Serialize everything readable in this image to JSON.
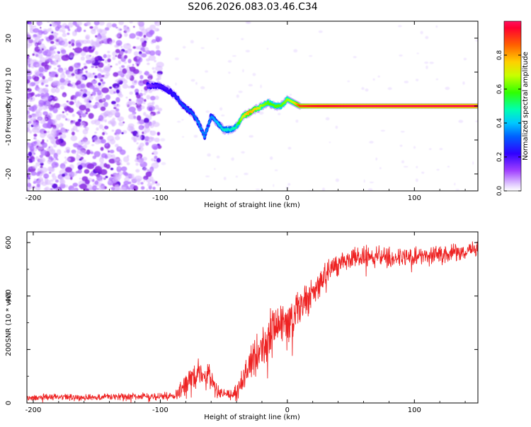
{
  "title": "S206.2026.083.03.46.C34",
  "colors": {
    "snr_line": "#ee2222",
    "axes": "#000000",
    "purple_scatter": "#8a2be2"
  },
  "chart_data": [
    {
      "type": "heatmap",
      "title": "S206.2026.083.03.46.C34",
      "xlabel": "Height of straight line (km)",
      "ylabel": "Frequency (Hz)",
      "xlim": [
        -205,
        150
      ],
      "ylim": [
        -25,
        25
      ],
      "x_ticks": [
        -200,
        -100,
        0,
        100
      ],
      "y_ticks": [
        -20,
        -10,
        0,
        10,
        20
      ],
      "colorbar": {
        "label": "Normalized spectral amplitude",
        "range": [
          0.0,
          1.0
        ],
        "ticks": [
          0.0,
          0.2,
          0.4,
          0.6,
          0.8
        ],
        "colormap": "rainbow (magenta-blue-cyan-green-yellow-red)"
      },
      "ridge": {
        "description": "frequency track of the strongest return",
        "x": [
          -110,
          -100,
          -95,
          -88,
          -82,
          -75,
          -70,
          -65,
          -60,
          -55,
          -50,
          -45,
          -40,
          -35,
          -30,
          -25,
          -20,
          -15,
          -10,
          -5,
          0,
          5,
          10,
          20,
          40,
          60,
          80,
          100,
          120,
          150
        ],
        "y": [
          6,
          6,
          5,
          3,
          0,
          -2,
          -5,
          -9,
          -3,
          -5,
          -7,
          -7,
          -6,
          -3,
          -2,
          -1,
          0,
          1,
          0,
          0,
          2,
          1,
          0,
          0,
          0,
          0,
          0,
          0,
          0,
          0
        ],
        "amplitude": [
          0.15,
          0.2,
          0.2,
          0.25,
          0.3,
          0.3,
          0.35,
          0.35,
          0.35,
          0.4,
          0.45,
          0.45,
          0.5,
          0.7,
          0.8,
          0.75,
          0.65,
          0.6,
          0.6,
          0.6,
          0.65,
          0.7,
          0.9,
          0.95,
          0.97,
          0.98,
          0.98,
          0.98,
          0.98,
          0.98
        ]
      },
      "noise_region_x": [
        -205,
        -110
      ]
    },
    {
      "type": "line",
      "xlabel": "Height of straight line (km)",
      "ylabel": "SNR (10 * v/v)",
      "xlim": [
        -205,
        150
      ],
      "ylim": [
        0,
        640
      ],
      "x_ticks": [
        -200,
        -100,
        0,
        100
      ],
      "y_ticks": [
        0,
        200,
        400,
        600
      ],
      "trend": {
        "x": [
          -205,
          -90,
          -80,
          -70,
          -60,
          -55,
          -45,
          -40,
          -30,
          -20,
          -10,
          0,
          10,
          20,
          30,
          40,
          50,
          60,
          70,
          80,
          100,
          120,
          140,
          150
        ],
        "y": [
          20,
          25,
          60,
          120,
          90,
          45,
          30,
          40,
          140,
          210,
          280,
          300,
          350,
          410,
          480,
          520,
          540,
          550,
          550,
          545,
          550,
          555,
          565,
          580
        ],
        "noise": [
          12,
          15,
          45,
          55,
          40,
          20,
          15,
          40,
          70,
          90,
          100,
          90,
          80,
          60,
          50,
          40,
          40,
          40,
          40,
          35,
          35,
          35,
          30,
          30
        ]
      }
    }
  ]
}
